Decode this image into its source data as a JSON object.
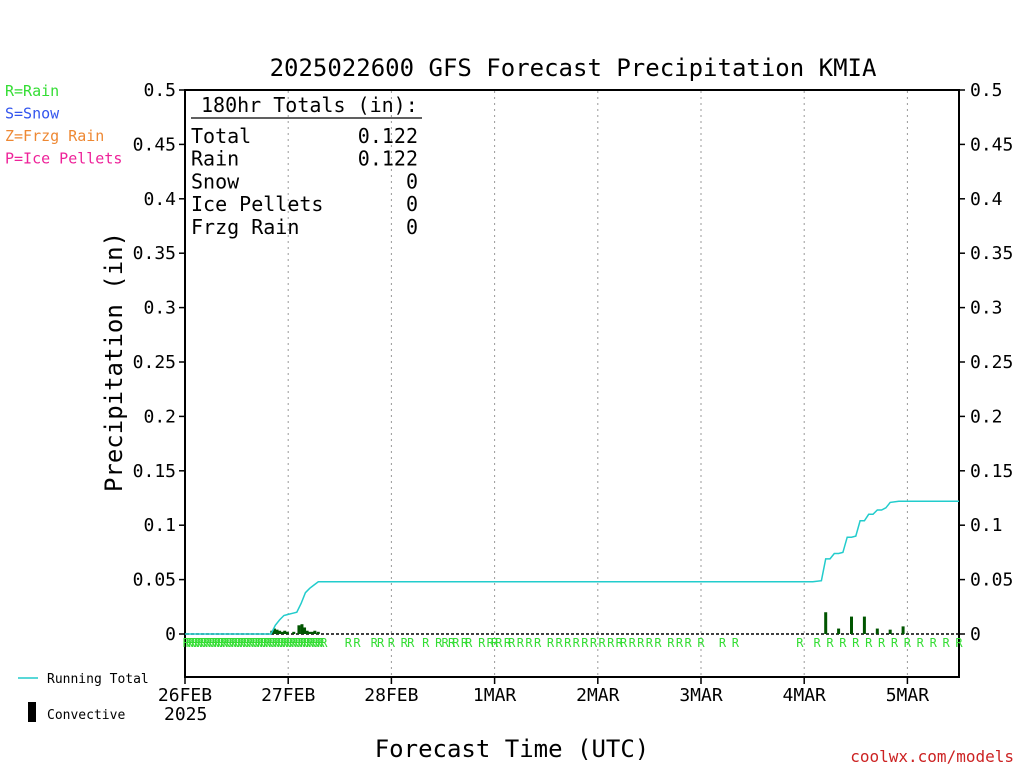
{
  "chart_data": {
    "type": "bar",
    "title": "2025022600 GFS Forecast Precipitation KMIA",
    "xlabel": "Forecast Time (UTC)",
    "ylabel": "Precipitation (in)",
    "ylim": [
      0,
      0.5
    ],
    "xlim_hours": [
      0,
      180
    ],
    "y_ticks": [
      "0",
      "0.05",
      "0.1",
      "0.15",
      "0.2",
      "0.25",
      "0.3",
      "0.35",
      "0.4",
      "0.45",
      "0.5"
    ],
    "x_ticks": [
      {
        "label": "26FEB",
        "hour": 0
      },
      {
        "label": "27FEB",
        "hour": 24
      },
      {
        "label": "28FEB",
        "hour": 48
      },
      {
        "label": "1MAR",
        "hour": 72
      },
      {
        "label": "2MAR",
        "hour": 96
      },
      {
        "label": "3MAR",
        "hour": 120
      },
      {
        "label": "4MAR",
        "hour": 144
      },
      {
        "label": "5MAR",
        "hour": 168
      }
    ],
    "x_year_label": "2025",
    "grid": "vertical dotted at day boundaries",
    "legend_ptypes": [
      {
        "label": "R=Rain",
        "color": "#33dd33"
      },
      {
        "label": "S=Snow",
        "color": "#3355ee"
      },
      {
        "label": "Z=Frzg Rain",
        "color": "#ee8833"
      },
      {
        "label": "P=Ice Pellets",
        "color": "#ee2299"
      }
    ],
    "legend_series": [
      {
        "label": "Running Total",
        "color": "#22cccc",
        "kind": "line"
      },
      {
        "label": "Convective",
        "color": "#000000",
        "kind": "bar"
      }
    ],
    "totals_box": {
      "heading": "180hr Totals (in):",
      "rows": [
        {
          "label": "Total",
          "value": "0.122"
        },
        {
          "label": "Rain",
          "value": "0.122"
        },
        {
          "label": "Snow",
          "value": "0"
        },
        {
          "label": "Ice Pellets",
          "value": "0"
        },
        {
          "label": "Frzg Rain",
          "value": "0"
        }
      ]
    },
    "series": [
      {
        "name": "Running Total",
        "color": "#22cccc",
        "points": [
          [
            0,
            0
          ],
          [
            20,
            0
          ],
          [
            21,
            0.008
          ],
          [
            22,
            0.013
          ],
          [
            23,
            0.017
          ],
          [
            24,
            0.018
          ],
          [
            25,
            0.019
          ],
          [
            26,
            0.02
          ],
          [
            27,
            0.028
          ],
          [
            28,
            0.038
          ],
          [
            29,
            0.042
          ],
          [
            30,
            0.045
          ],
          [
            31,
            0.048
          ],
          [
            32,
            0.048
          ],
          [
            144,
            0.048
          ],
          [
            146,
            0.048
          ],
          [
            148,
            0.049
          ],
          [
            149,
            0.069
          ],
          [
            150,
            0.069
          ],
          [
            151,
            0.074
          ],
          [
            152,
            0.074
          ],
          [
            153,
            0.075
          ],
          [
            154,
            0.089
          ],
          [
            155,
            0.089
          ],
          [
            156,
            0.09
          ],
          [
            157,
            0.104
          ],
          [
            158,
            0.104
          ],
          [
            159,
            0.11
          ],
          [
            160,
            0.11
          ],
          [
            161,
            0.114
          ],
          [
            162,
            0.114
          ],
          [
            163,
            0.116
          ],
          [
            164,
            0.121
          ],
          [
            166,
            0.122
          ],
          [
            168,
            0.122
          ],
          [
            180,
            0.122
          ]
        ]
      },
      {
        "name": "Convective",
        "color": "#005500",
        "bars": [
          [
            20.2,
            0.003
          ],
          [
            20.8,
            0.005
          ],
          [
            21.4,
            0.004
          ],
          [
            22,
            0.003
          ],
          [
            22.6,
            0.002
          ],
          [
            23.2,
            0.003
          ],
          [
            23.8,
            0.002
          ],
          [
            25.3,
            0.002
          ],
          [
            26.5,
            0.008
          ],
          [
            27.2,
            0.009
          ],
          [
            27.8,
            0.006
          ],
          [
            28.4,
            0.003
          ],
          [
            29.0,
            0.002
          ],
          [
            29.6,
            0.002
          ],
          [
            30.2,
            0.003
          ],
          [
            31,
            0.002
          ],
          [
            149,
            0.02
          ],
          [
            152,
            0.005
          ],
          [
            155,
            0.016
          ],
          [
            158,
            0.016
          ],
          [
            161,
            0.005
          ],
          [
            164,
            0.004
          ],
          [
            167,
            0.007
          ]
        ]
      }
    ],
    "ptype_hours": [
      0.3,
      1,
      1.6,
      2.3,
      3,
      3.6,
      4.3,
      5,
      5.6,
      6.3,
      7,
      7.6,
      8.3,
      9,
      9.6,
      10.3,
      11,
      11.6,
      12.3,
      13,
      13.6,
      14.3,
      15,
      15.6,
      16.3,
      17,
      17.6,
      18.3,
      19,
      19.6,
      20.3,
      21,
      21.6,
      22.3,
      23,
      23.6,
      24.3,
      25,
      25.6,
      26.3,
      27,
      27.6,
      28.3,
      29,
      29.6,
      30.3,
      31,
      31.6,
      32.3,
      38,
      40,
      44,
      45.5,
      48,
      51,
      52.5,
      56,
      59,
      60.5,
      62,
      63,
      65,
      66,
      69,
      71,
      72,
      73,
      75,
      76,
      78,
      80,
      82,
      85,
      87,
      89,
      91,
      93,
      95,
      97,
      99,
      101,
      102,
      104,
      106,
      108,
      110,
      113,
      115,
      117,
      120,
      125,
      128,
      143,
      147,
      150,
      153,
      156,
      159,
      162,
      165,
      168,
      171,
      174,
      177,
      180
    ],
    "ptype_letter": "R",
    "watermark": "coolwx.com/models"
  }
}
